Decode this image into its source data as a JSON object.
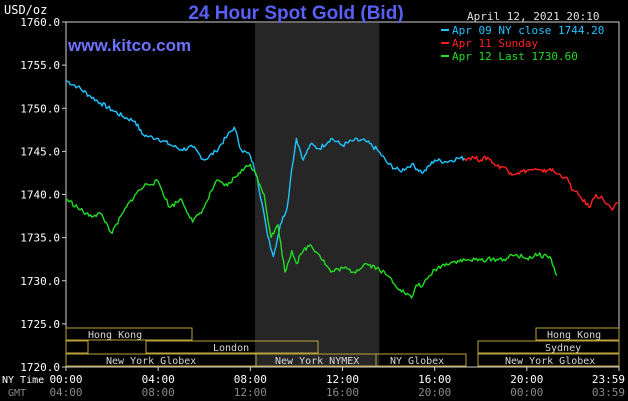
{
  "header": {
    "title": "24 Hour Spot Gold (Bid)",
    "website": "www.kitco.com",
    "unit_label": "USD/oz",
    "datetime": "April 12, 2021 20:10"
  },
  "legend": [
    {
      "label": "Apr 09 NY close 1744.20",
      "color": "#20c4ff"
    },
    {
      "label": "Apr 11 Sunday",
      "color": "#ff2020"
    },
    {
      "label": "Apr 12 Last 1730.60",
      "color": "#22dd22"
    }
  ],
  "time_axis": {
    "ny_label": "NY Time",
    "gmt_label": "GMT",
    "ny_ticks": [
      "00:00",
      "04:00",
      "08:00",
      "12:00",
      "16:00",
      "20:00",
      "23:59"
    ],
    "gmt_ticks": [
      "04:00",
      "08:00",
      "12:00",
      "16:00",
      "20:00",
      "00:00",
      "03:59"
    ]
  },
  "sessions": {
    "hong_kong_1": "Hong Kong",
    "london": "London",
    "ny_globex_1": "New York Globex",
    "ny_nymex": "New York NYMEX",
    "ny_globex_2": "NY Globex",
    "hong_kong_2": "Hong Kong",
    "sydney": "Sydney",
    "ny_globex_3": "New York Globex"
  },
  "chart_data": {
    "type": "line",
    "title": "24 Hour Spot Gold (Bid)",
    "ylabel": "USD/oz",
    "ylim": [
      1720.0,
      1760.0
    ],
    "y_ticks": [
      "1760.0",
      "1755.0",
      "1750.0",
      "1745.0",
      "1740.0",
      "1735.0",
      "1730.0",
      "1725.0",
      "1720.0"
    ],
    "xlim_hours": [
      0,
      24
    ],
    "shaded_hours": [
      8.2,
      13.6
    ],
    "series": [
      {
        "name": "Apr 09 NY close 1744.20",
        "color": "#20c4ff",
        "x": [
          0,
          0.5,
          1,
          1.5,
          2,
          2.5,
          3,
          3.3,
          3.6,
          4,
          4.5,
          5,
          5.5,
          6,
          6.5,
          7,
          7.3,
          7.6,
          8,
          8.3,
          8.7,
          9,
          9.3,
          9.6,
          9.8,
          10,
          10.3,
          10.6,
          11,
          11.5,
          12,
          12.5,
          13,
          13.5,
          14,
          14.5,
          15,
          15.5,
          16,
          16.5,
          17,
          17.3
        ],
        "y": [
          1753.2,
          1752.5,
          1751.5,
          1750.6,
          1749.8,
          1749.0,
          1748.5,
          1747.0,
          1746.7,
          1746.5,
          1745.8,
          1745.2,
          1745.5,
          1744.0,
          1745.0,
          1746.8,
          1747.8,
          1745.2,
          1744.5,
          1742.0,
          1736.0,
          1732.8,
          1736.5,
          1738.5,
          1743.0,
          1746.5,
          1744.0,
          1745.8,
          1745.3,
          1746.5,
          1745.7,
          1746.3,
          1746.2,
          1745.2,
          1743.5,
          1742.7,
          1743.5,
          1742.5,
          1744.0,
          1743.8,
          1744.2,
          1744.2
        ]
      },
      {
        "name": "Apr 11 Sunday",
        "color": "#ff2020",
        "x": [
          17.3,
          17.7,
          18,
          18.3,
          18.7,
          19,
          19.3,
          19.6,
          20,
          20.3,
          20.7,
          21,
          21.3,
          21.7,
          22,
          22.3,
          22.7,
          23,
          23.3,
          23.7,
          23.95
        ],
        "y": [
          1744.2,
          1744.3,
          1744.0,
          1744.3,
          1743.3,
          1743.2,
          1742.5,
          1742.5,
          1742.8,
          1742.9,
          1742.6,
          1743.0,
          1742.4,
          1742.0,
          1740.5,
          1739.8,
          1738.5,
          1740.0,
          1739.5,
          1738.2,
          1739.0
        ]
      },
      {
        "name": "Apr 12 Last 1730.60",
        "color": "#22dd22",
        "x": [
          0,
          0.5,
          1,
          1.5,
          2,
          2.5,
          3,
          3.5,
          4,
          4.5,
          5,
          5.5,
          6,
          6.5,
          7,
          7.5,
          8,
          8.3,
          8.6,
          8.9,
          9.2,
          9.5,
          9.8,
          10,
          10.3,
          10.6,
          11,
          11.5,
          12,
          12.5,
          13,
          13.5,
          14,
          14.5,
          15,
          15.2,
          15.5,
          16,
          16.5,
          17,
          17.5,
          18,
          18.5,
          19,
          19.5,
          20,
          20.5,
          21,
          21.3
        ],
        "y": [
          1739.5,
          1738.5,
          1737.5,
          1737.8,
          1735.5,
          1738.0,
          1740.0,
          1741.2,
          1741.5,
          1738.5,
          1739.5,
          1736.8,
          1738.5,
          1741.5,
          1741.0,
          1742.5,
          1743.5,
          1742.0,
          1740.0,
          1735.0,
          1736.5,
          1731.0,
          1733.5,
          1732.0,
          1733.5,
          1734.2,
          1733.0,
          1731.0,
          1731.5,
          1731.0,
          1732.0,
          1731.5,
          1730.5,
          1729.0,
          1728.0,
          1729.5,
          1729.5,
          1731.3,
          1732.0,
          1732.3,
          1732.4,
          1732.4,
          1732.5,
          1732.5,
          1733.0,
          1732.6,
          1733.0,
          1732.8,
          1730.6
        ]
      }
    ],
    "grid": false,
    "legend_position": "top-right"
  }
}
